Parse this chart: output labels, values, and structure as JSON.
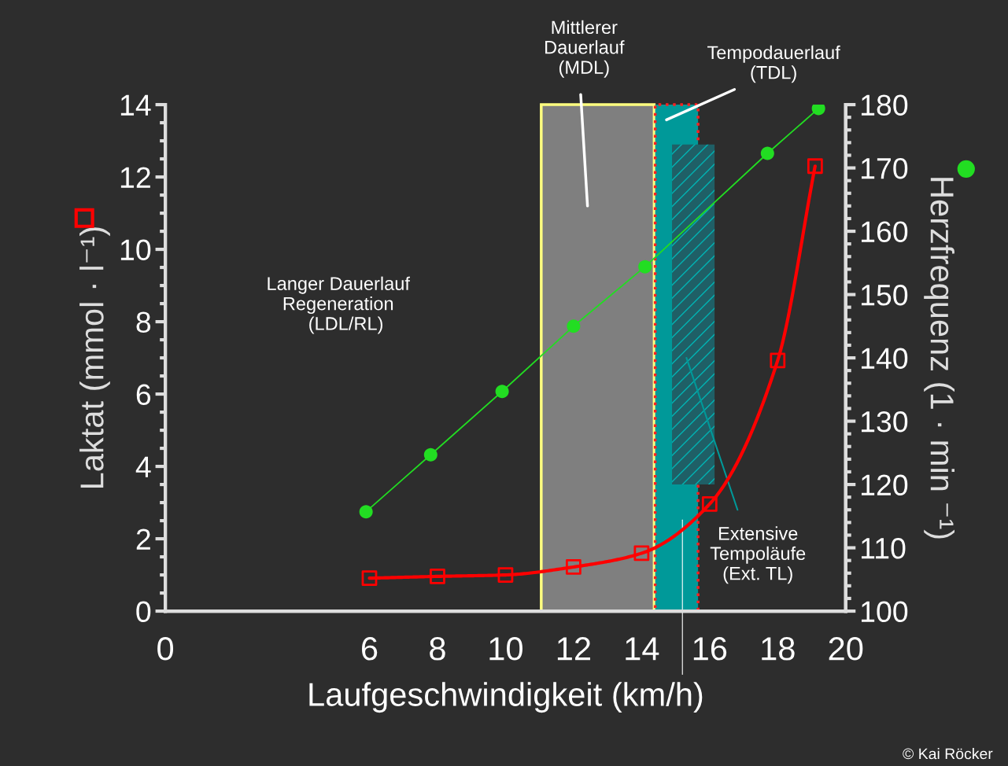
{
  "chart_data": {
    "type": "line",
    "xlabel": "Laufgeschwindigkeit (km/h)",
    "ylabel": "Laktat (mmol · l⁻¹)",
    "y2label": "Herzfrequenz (1 · min ⁻¹)",
    "xlim": [
      0,
      20
    ],
    "xticks": [
      0,
      6,
      8,
      10,
      12,
      14,
      16,
      18,
      20
    ],
    "ylim": [
      0,
      14
    ],
    "yticks": [
      0,
      2,
      4,
      6,
      8,
      10,
      12,
      14
    ],
    "y2lim": [
      100,
      180
    ],
    "y2ticks": [
      100,
      110,
      120,
      130,
      140,
      150,
      160,
      170,
      180
    ],
    "series": [
      {
        "color": "#ff0000",
        "marker": "square",
        "x": [
          6,
          8,
          10,
          12,
          14,
          16,
          18,
          19.1
        ],
        "values": [
          0.91,
          0.96,
          1.0,
          1.22,
          1.6,
          2.96,
          6.93,
          12.3
        ]
      },
      {
        "color": "#22dd22",
        "marker": "circle",
        "axis": "y2",
        "x": [
          5.9,
          7.8,
          9.9,
          12.0,
          14.1,
          17.7,
          19.2
        ],
        "values": [
          115.7,
          124.7,
          134.7,
          145.0,
          154.4,
          172.3,
          179.4
        ]
      },
      {
        "type": "bar",
        "name": "Extensive\nTempoläufe\n(Ext. TL)",
        "color": "#1f5f66",
        "x": [
          15.52
        ],
        "values": [
          9.4
        ],
        "base": [
          3.5
        ]
      }
    ],
    "bands": [
      {
        "axis": "x",
        "from": 11.05,
        "to": 14.37,
        "label": "Mittlerer\nDauerlauf\n(MDL)",
        "color": "#7f7f7f"
      },
      {
        "axis": "x",
        "from": 14.4,
        "to": 15.66,
        "label": "Tempodauerlauf\n(TDL)",
        "color": "#009999"
      }
    ],
    "ref_lines": [
      {
        "axis": "x",
        "value": 15.2,
        "color": "#ffffff"
      }
    ],
    "annotations": [
      "Langer Dauerlauf\nRegeneration\n   (LDL/RL)",
      "© Kai Röcker"
    ],
    "grid": false,
    "legend": false
  }
}
